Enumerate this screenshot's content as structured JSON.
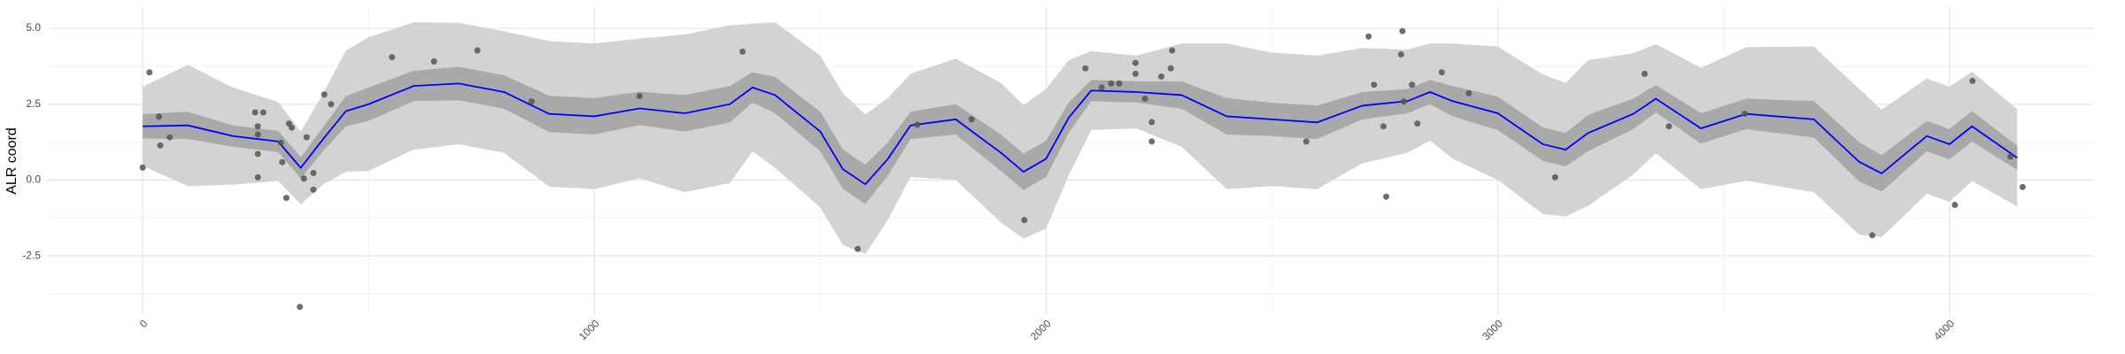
{
  "chart_data": {
    "type": "line",
    "y_label": "ALR coord",
    "xlim": [
      -210,
      4320
    ],
    "ylim": [
      -4.45,
      5.7
    ],
    "xticks": [
      0,
      1000,
      2000,
      3000,
      4000
    ],
    "yticks": [
      {
        "value": -2.5,
        "label": "-2.5"
      },
      {
        "value": 0,
        "label": "0.0"
      },
      {
        "value": 2.5,
        "label": "2.5"
      },
      {
        "value": 5,
        "label": "5.0"
      }
    ],
    "x_minor_grid": [
      500,
      1500,
      2500,
      3500
    ],
    "y_minor_grid": [
      -3.75,
      -1.25,
      1.25,
      3.75
    ],
    "grid": true,
    "x": [
      0,
      100,
      200,
      300,
      350,
      400,
      450,
      500,
      600,
      700,
      800,
      900,
      1000,
      1100,
      1200,
      1300,
      1350,
      1400,
      1500,
      1550,
      1600,
      1650,
      1700,
      1800,
      1900,
      1950,
      2000,
      2050,
      2100,
      2200,
      2300,
      2400,
      2500,
      2600,
      2700,
      2800,
      2850,
      2900,
      3000,
      3100,
      3150,
      3200,
      3300,
      3350,
      3450,
      3550,
      3700,
      3800,
      3850,
      3950,
      4000,
      4050,
      4150
    ],
    "bands": [
      {
        "color": "#d3d3d3",
        "lower": [
          0.47,
          -0.2,
          -0.15,
          -0.03,
          -0.8,
          -0.14,
          0.27,
          0.3,
          1.0,
          1.18,
          0.9,
          -0.22,
          -0.3,
          0.06,
          -0.4,
          -0.1,
          0.95,
          0.4,
          -0.9,
          -2.14,
          -2.44,
          -1.3,
          0.1,
          0.0,
          -1.4,
          -1.93,
          -1.6,
          0.15,
          1.65,
          1.7,
          1.1,
          -0.3,
          -0.2,
          -0.3,
          0.55,
          0.9,
          1.3,
          0.7,
          0.0,
          -1.12,
          -1.2,
          -0.85,
          0.18,
          0.88,
          -0.3,
          -0.02,
          -0.4,
          -1.8,
          -1.88,
          -0.45,
          -0.72,
          -0.03,
          -0.87
        ],
        "upper": [
          3.07,
          3.8,
          3.05,
          2.57,
          1.6,
          2.86,
          4.27,
          4.7,
          5.2,
          5.18,
          4.9,
          4.58,
          4.5,
          4.66,
          4.8,
          5.1,
          5.15,
          5.2,
          4.1,
          2.86,
          2.16,
          2.7,
          3.5,
          4.0,
          3.2,
          2.47,
          3.0,
          3.95,
          4.25,
          4.1,
          4.5,
          4.5,
          4.2,
          4.1,
          4.35,
          4.3,
          4.5,
          4.5,
          4.4,
          3.48,
          3.2,
          3.95,
          4.18,
          4.48,
          3.7,
          4.38,
          4.4,
          3.0,
          2.32,
          3.35,
          3.08,
          3.57,
          2.33
        ]
      },
      {
        "color": "#a9a9a9",
        "lower": [
          1.37,
          1.35,
          1.1,
          0.92,
          0.05,
          0.96,
          1.77,
          1.95,
          2.6,
          2.63,
          2.35,
          1.58,
          1.5,
          1.81,
          1.6,
          1.9,
          2.55,
          2.2,
          0.95,
          -0.29,
          -0.79,
          0.15,
          1.35,
          1.5,
          0.3,
          -0.33,
          0.1,
          1.55,
          2.6,
          2.55,
          2.35,
          1.5,
          1.45,
          1.35,
          2.0,
          2.2,
          2.5,
          2.1,
          1.65,
          0.63,
          0.45,
          0.95,
          1.68,
          2.23,
          1.2,
          1.68,
          1.4,
          -0.05,
          -0.38,
          0.95,
          0.68,
          1.27,
          0.33
        ],
        "upper": [
          2.17,
          2.25,
          1.8,
          1.62,
          0.75,
          1.76,
          2.77,
          3.05,
          3.6,
          3.73,
          3.45,
          2.78,
          2.7,
          2.91,
          2.8,
          3.1,
          3.55,
          3.4,
          2.25,
          1.01,
          0.51,
          1.25,
          2.25,
          2.5,
          1.5,
          0.87,
          1.3,
          2.55,
          3.3,
          3.25,
          3.25,
          2.7,
          2.55,
          2.45,
          2.9,
          3.0,
          3.3,
          3.1,
          2.75,
          1.73,
          1.55,
          2.15,
          2.68,
          3.13,
          2.2,
          2.68,
          2.6,
          1.25,
          0.82,
          1.95,
          1.68,
          2.27,
          1.13
        ]
      }
    ],
    "line": {
      "color": "#0000ff",
      "values": [
        1.77,
        1.8,
        1.45,
        1.27,
        0.4,
        1.36,
        2.27,
        2.5,
        3.1,
        3.18,
        2.9,
        2.18,
        2.1,
        2.36,
        2.2,
        2.5,
        3.05,
        2.8,
        1.6,
        0.36,
        -0.14,
        0.7,
        1.8,
        2.0,
        0.9,
        0.27,
        0.7,
        2.05,
        2.95,
        2.9,
        2.8,
        2.1,
        2.0,
        1.9,
        2.45,
        2.6,
        2.9,
        2.6,
        2.2,
        1.18,
        1.0,
        1.55,
        2.18,
        2.68,
        1.7,
        2.18,
        2.0,
        0.6,
        0.22,
        1.45,
        1.18,
        1.77,
        0.73
      ]
    },
    "points": {
      "color": "#555555",
      "x": [
        0,
        15,
        36,
        39,
        60,
        249,
        255,
        255,
        255,
        267,
        255,
        306,
        309,
        318,
        324,
        330,
        348,
        357,
        378,
        378,
        363,
        402,
        417,
        552,
        645,
        741,
        861,
        1100,
        1328,
        1715,
        1835,
        1952,
        1583,
        2087,
        2123,
        2144,
        2162,
        2198,
        2198,
        2219,
        2234,
        2234,
        2255,
        2276,
        2279,
        2576,
        2714,
        2726,
        2747,
        2753,
        2789,
        2786,
        2792,
        2810,
        2822,
        2876,
        2936,
        3127,
        3325,
        3379,
        3547,
        3829,
        4012,
        4051,
        4135,
        4162
      ],
      "y": [
        0.41,
        3.55,
        2.09,
        1.14,
        1.41,
        2.23,
        1.77,
        0.86,
        0.09,
        2.23,
        1.5,
        1.23,
        0.59,
        -0.59,
        1.86,
        1.73,
        -4.18,
        0.05,
        0.23,
        -0.32,
        1.41,
        2.82,
        2.5,
        4.05,
        3.91,
        4.27,
        2.59,
        2.77,
        4.23,
        1.82,
        2.0,
        -1.32,
        -2.27,
        3.68,
        3.05,
        3.18,
        3.18,
        3.86,
        3.5,
        2.68,
        1.91,
        1.27,
        3.41,
        3.68,
        4.27,
        1.27,
        4.73,
        3.14,
        1.77,
        -0.55,
        4.91,
        4.14,
        2.59,
        3.14,
        1.86,
        3.55,
        2.86,
        0.09,
        3.5,
        1.77,
        2.18,
        -1.82,
        -0.82,
        3.27,
        0.77,
        -0.23
      ]
    }
  }
}
